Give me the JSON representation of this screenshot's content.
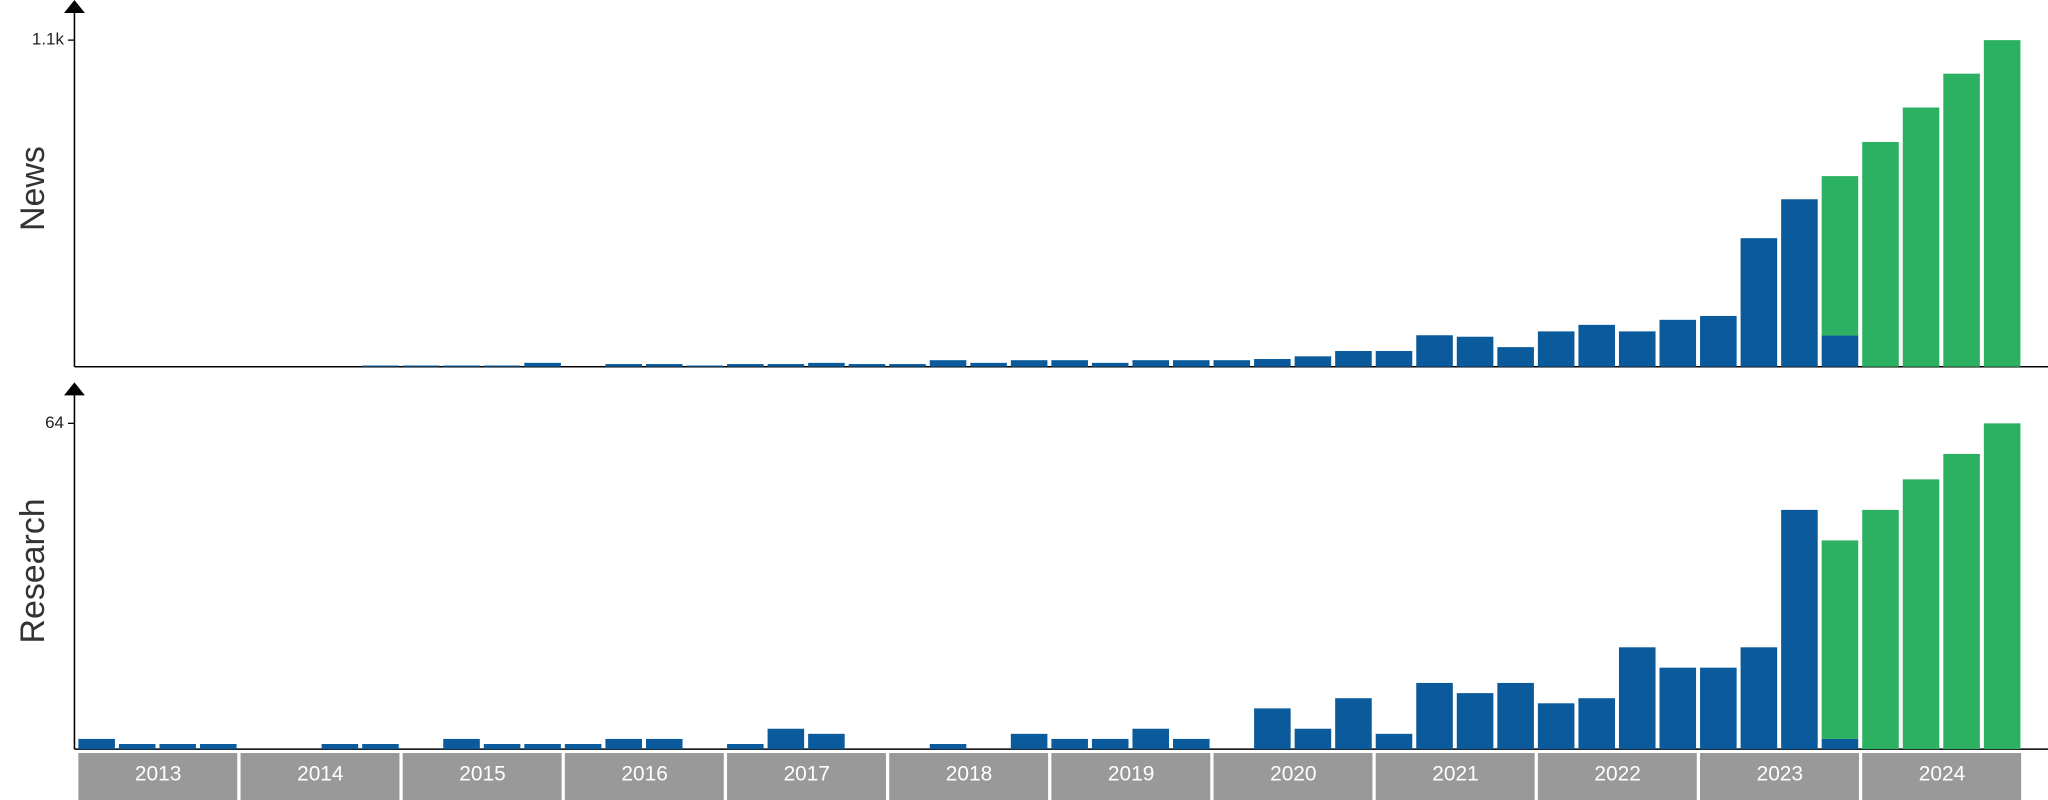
{
  "chart_data": [
    {
      "type": "bar",
      "stacked": true,
      "ylabel": "News",
      "ylim": [
        0,
        1200
      ],
      "yticks": [
        {
          "value": 1100,
          "label": "1.1k"
        }
      ],
      "series": [
        {
          "color": "#0a5a9c",
          "values": [
            0,
            0,
            0,
            0,
            0,
            0,
            0,
            4,
            4,
            4,
            4,
            13,
            0,
            9,
            9,
            4,
            9,
            9,
            13,
            9,
            9,
            22,
            13,
            22,
            22,
            13,
            22,
            22,
            22,
            26,
            35,
            53,
            53,
            106,
            101,
            66,
            119,
            141,
            119,
            158,
            171,
            433,
            564,
            105,
            null,
            null,
            null,
            null
          ]
        },
        {
          "color": "#2bb161",
          "values": [
            null,
            null,
            null,
            null,
            null,
            null,
            null,
            null,
            null,
            null,
            null,
            null,
            null,
            null,
            null,
            null,
            null,
            null,
            null,
            null,
            null,
            null,
            null,
            null,
            null,
            null,
            null,
            null,
            null,
            null,
            null,
            null,
            null,
            null,
            null,
            null,
            null,
            null,
            null,
            null,
            null,
            null,
            null,
            537,
            757,
            873,
            987,
            1100
          ]
        }
      ]
    },
    {
      "type": "bar",
      "stacked": true,
      "ylabel": "Research",
      "ylim": [
        0,
        70
      ],
      "yticks": [
        64
      ],
      "groups": [
        "2013",
        "2014",
        "2015",
        "2016",
        "2017",
        "2018",
        "2019",
        "2020",
        "2021",
        "2022",
        "2023",
        "2024"
      ],
      "series": [
        {
          "color": "#0a5a9c",
          "values": [
            2,
            1,
            1,
            1,
            0,
            0,
            1,
            1,
            0,
            2,
            1,
            1,
            1,
            2,
            2,
            0,
            1,
            4,
            3,
            0,
            0,
            1,
            0,
            3,
            2,
            2,
            4,
            2,
            0,
            8,
            4,
            10,
            3,
            13,
            11,
            13,
            9,
            10,
            20,
            16,
            16,
            20,
            47,
            2,
            null,
            null,
            null,
            null
          ]
        },
        {
          "color": "#2bb161",
          "values": [
            null,
            null,
            null,
            null,
            null,
            null,
            null,
            null,
            null,
            null,
            null,
            null,
            null,
            null,
            null,
            null,
            null,
            null,
            null,
            null,
            null,
            null,
            null,
            null,
            null,
            null,
            null,
            null,
            null,
            null,
            null,
            null,
            null,
            null,
            null,
            null,
            null,
            null,
            null,
            null,
            null,
            null,
            null,
            39,
            47,
            53,
            58,
            64
          ]
        }
      ]
    }
  ]
}
